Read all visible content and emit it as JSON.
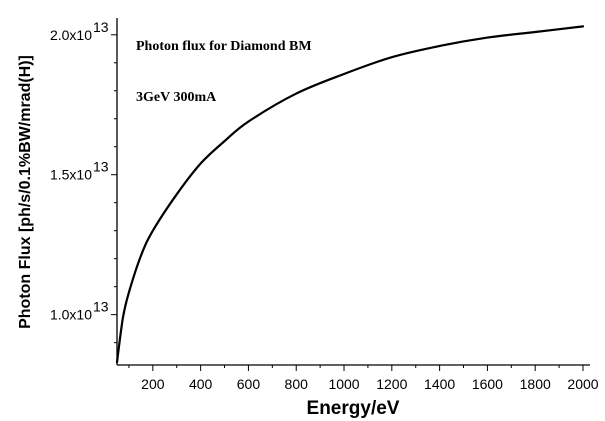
{
  "chart_data": {
    "type": "line",
    "xlabel": "Energy/eV",
    "ylabel": "Photon Flux [ph/s/0.1%BW/mrad(H)]",
    "xlim": [
      50,
      2000
    ],
    "ylim": [
      8200000000000.0,
      20600000000000.0
    ],
    "x_ticks": [
      200,
      400,
      600,
      800,
      1000,
      1200,
      1400,
      1600,
      1800,
      2000
    ],
    "y_ticks": [
      {
        "value": 10000000000000.0,
        "mantissa": "1.0x10",
        "exponent": "13"
      },
      {
        "value": 15000000000000.0,
        "mantissa": "1.5x10",
        "exponent": "13"
      },
      {
        "value": 20000000000000.0,
        "mantissa": "2.0x10",
        "exponent": "13"
      }
    ],
    "annotations": [
      "Photon flux for Diamond BM",
      "3GeV 300mA"
    ],
    "grid": false,
    "series": [
      {
        "x": [
          50,
          75,
          100,
          150,
          200,
          300,
          400,
          500,
          600,
          800,
          1000,
          1200,
          1400,
          1600,
          1800,
          2000
        ],
        "values": [
          8300000000000.0,
          9900000000000.0,
          10800000000000.0,
          12100000000000.0,
          13000000000000.0,
          14300000000000.0,
          15400000000000.0,
          16200000000000.0,
          16900000000000.0,
          17900000000000.0,
          18600000000000.0,
          19200000000000.0,
          19600000000000.0,
          19900000000000.0,
          20100000000000.0,
          20300000000000.0
        ]
      }
    ]
  }
}
